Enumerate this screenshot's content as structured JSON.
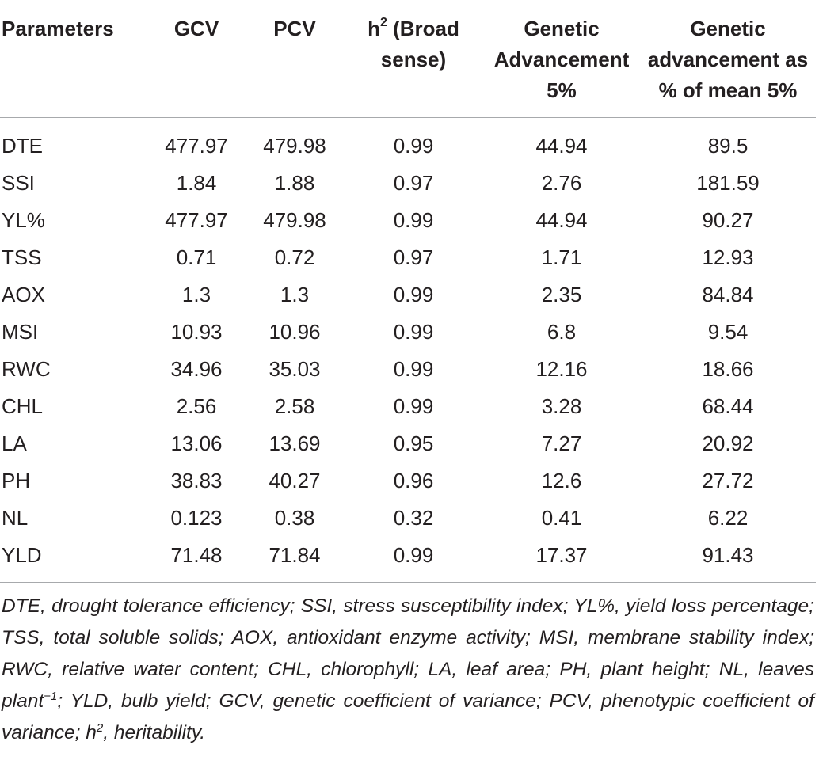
{
  "table": {
    "headers": [
      "Parameters",
      "GCV",
      "PCV",
      "h2 (Broad sense)",
      "Genetic Advancement 5%",
      "Genetic advancement as % of mean 5%"
    ],
    "header_parts": {
      "h": "h",
      "sup2": "2",
      "broad": " (Broad sense)"
    },
    "rows": [
      [
        "DTE",
        "477.97",
        "479.98",
        "0.99",
        "44.94",
        "89.5"
      ],
      [
        "SSI",
        "1.84",
        "1.88",
        "0.97",
        "2.76",
        "181.59"
      ],
      [
        "YL%",
        "477.97",
        "479.98",
        "0.99",
        "44.94",
        "90.27"
      ],
      [
        "TSS",
        "0.71",
        "0.72",
        "0.97",
        "1.71",
        "12.93"
      ],
      [
        "AOX",
        "1.3",
        "1.3",
        "0.99",
        "2.35",
        "84.84"
      ],
      [
        "MSI",
        "10.93",
        "10.96",
        "0.99",
        "6.8",
        "9.54"
      ],
      [
        "RWC",
        "34.96",
        "35.03",
        "0.99",
        "12.16",
        "18.66"
      ],
      [
        "CHL",
        "2.56",
        "2.58",
        "0.99",
        "3.28",
        "68.44"
      ],
      [
        "LA",
        "13.06",
        "13.69",
        "0.95",
        "7.27",
        "20.92"
      ],
      [
        "PH",
        "38.83",
        "40.27",
        "0.96",
        "12.6",
        "27.72"
      ],
      [
        "NL",
        "0.123",
        "0.38",
        "0.32",
        "0.41",
        "6.22"
      ],
      [
        "YLD",
        "71.48",
        "71.84",
        "0.99",
        "17.37",
        "91.43"
      ]
    ]
  },
  "footnote": {
    "part1": "DTE, drought tolerance efficiency; SSI, stress susceptibility index; YL%, yield loss percentage; TSS, total soluble solids; AOX, antioxidant enzyme activity; MSI, membrane stability index; RWC, relative water content; CHL, chlorophyll; LA, leaf area; PH, plant height; NL, leaves plant",
    "sup_minus1": "−1",
    "part2": "; YLD, bulb yield; GCV, genetic coefficient of variance; PCV, phenotypic coefficient of variance; h",
    "sup_2": "2",
    "part3": ", heritability."
  },
  "colors": {
    "text": "#231f20",
    "rule": "#a7a9ac"
  }
}
